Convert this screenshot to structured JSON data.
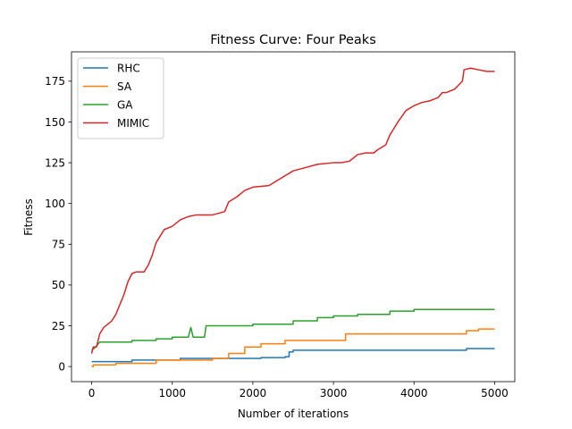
{
  "chart_data": {
    "type": "line",
    "title": "Fitness Curve: Four Peaks",
    "xlabel": "Number of iterations",
    "ylabel": "Fitness",
    "xlim": [
      -250,
      5250
    ],
    "ylim": [
      -9.25,
      193
    ],
    "xticks": [
      0,
      1000,
      2000,
      3000,
      4000,
      5000
    ],
    "yticks": [
      0,
      25,
      50,
      75,
      100,
      125,
      150,
      175
    ],
    "grid": false,
    "legend_position": "top-left",
    "series": [
      {
        "name": "RHC",
        "color": "#1f77b4",
        "points": [
          [
            0,
            3
          ],
          [
            500,
            3
          ],
          [
            500,
            4
          ],
          [
            1100,
            4
          ],
          [
            1100,
            5
          ],
          [
            2100,
            5
          ],
          [
            2100,
            5.5
          ],
          [
            2400,
            5.5
          ],
          [
            2400,
            6
          ],
          [
            2450,
            6
          ],
          [
            2450,
            9
          ],
          [
            2500,
            9
          ],
          [
            2500,
            10
          ],
          [
            4650,
            10
          ],
          [
            4650,
            11
          ],
          [
            5000,
            11
          ]
        ]
      },
      {
        "name": "SA",
        "color": "#ff7f0e",
        "points": [
          [
            0,
            0
          ],
          [
            20,
            0
          ],
          [
            20,
            1
          ],
          [
            300,
            1
          ],
          [
            300,
            2
          ],
          [
            800,
            2
          ],
          [
            800,
            4
          ],
          [
            1500,
            4
          ],
          [
            1500,
            5
          ],
          [
            1700,
            5
          ],
          [
            1700,
            8
          ],
          [
            1900,
            8
          ],
          [
            1900,
            12
          ],
          [
            2100,
            12
          ],
          [
            2100,
            14
          ],
          [
            2400,
            14
          ],
          [
            2400,
            16
          ],
          [
            3150,
            16
          ],
          [
            3150,
            20
          ],
          [
            4650,
            20
          ],
          [
            4650,
            22
          ],
          [
            4800,
            22
          ],
          [
            4800,
            23
          ],
          [
            5000,
            23
          ]
        ]
      },
      {
        "name": "GA",
        "color": "#2ca02c",
        "points": [
          [
            0,
            10
          ],
          [
            50,
            12
          ],
          [
            100,
            15
          ],
          [
            500,
            15
          ],
          [
            500,
            16
          ],
          [
            800,
            16
          ],
          [
            800,
            17
          ],
          [
            1000,
            17
          ],
          [
            1000,
            18
          ],
          [
            1200,
            18
          ],
          [
            1230,
            24
          ],
          [
            1260,
            18
          ],
          [
            1400,
            18
          ],
          [
            1420,
            25
          ],
          [
            2000,
            25
          ],
          [
            2000,
            26
          ],
          [
            2500,
            26
          ],
          [
            2500,
            28
          ],
          [
            2800,
            28
          ],
          [
            2800,
            30
          ],
          [
            3000,
            30
          ],
          [
            3000,
            31
          ],
          [
            3300,
            31
          ],
          [
            3300,
            32
          ],
          [
            3700,
            32
          ],
          [
            3700,
            34
          ],
          [
            4000,
            34
          ],
          [
            4000,
            35
          ],
          [
            5000,
            35
          ]
        ]
      },
      {
        "name": "MIMIC",
        "color": "#d62728",
        "points": [
          [
            0,
            8
          ],
          [
            20,
            12
          ],
          [
            60,
            12
          ],
          [
            100,
            20
          ],
          [
            150,
            24
          ],
          [
            250,
            28
          ],
          [
            300,
            32
          ],
          [
            350,
            38
          ],
          [
            400,
            44
          ],
          [
            450,
            52
          ],
          [
            500,
            57
          ],
          [
            550,
            58
          ],
          [
            650,
            58
          ],
          [
            700,
            62
          ],
          [
            750,
            68
          ],
          [
            800,
            76
          ],
          [
            850,
            80
          ],
          [
            900,
            84
          ],
          [
            1000,
            86
          ],
          [
            1050,
            88
          ],
          [
            1100,
            90
          ],
          [
            1200,
            92
          ],
          [
            1300,
            93
          ],
          [
            1500,
            93
          ],
          [
            1650,
            95
          ],
          [
            1700,
            101
          ],
          [
            1800,
            104
          ],
          [
            1900,
            108
          ],
          [
            2000,
            110
          ],
          [
            2200,
            111
          ],
          [
            2300,
            114
          ],
          [
            2400,
            117
          ],
          [
            2500,
            120
          ],
          [
            2650,
            122
          ],
          [
            2800,
            124
          ],
          [
            3000,
            125
          ],
          [
            3100,
            125
          ],
          [
            3200,
            126
          ],
          [
            3300,
            130
          ],
          [
            3400,
            131
          ],
          [
            3500,
            131
          ],
          [
            3550,
            133
          ],
          [
            3650,
            136
          ],
          [
            3700,
            142
          ],
          [
            3750,
            146
          ],
          [
            3800,
            150
          ],
          [
            3900,
            157
          ],
          [
            4000,
            160
          ],
          [
            4100,
            162
          ],
          [
            4200,
            163
          ],
          [
            4300,
            165
          ],
          [
            4350,
            168
          ],
          [
            4400,
            168
          ],
          [
            4500,
            170
          ],
          [
            4600,
            175
          ],
          [
            4620,
            182
          ],
          [
            4700,
            183
          ],
          [
            4800,
            182
          ],
          [
            4900,
            181
          ],
          [
            5000,
            181
          ]
        ]
      }
    ]
  }
}
